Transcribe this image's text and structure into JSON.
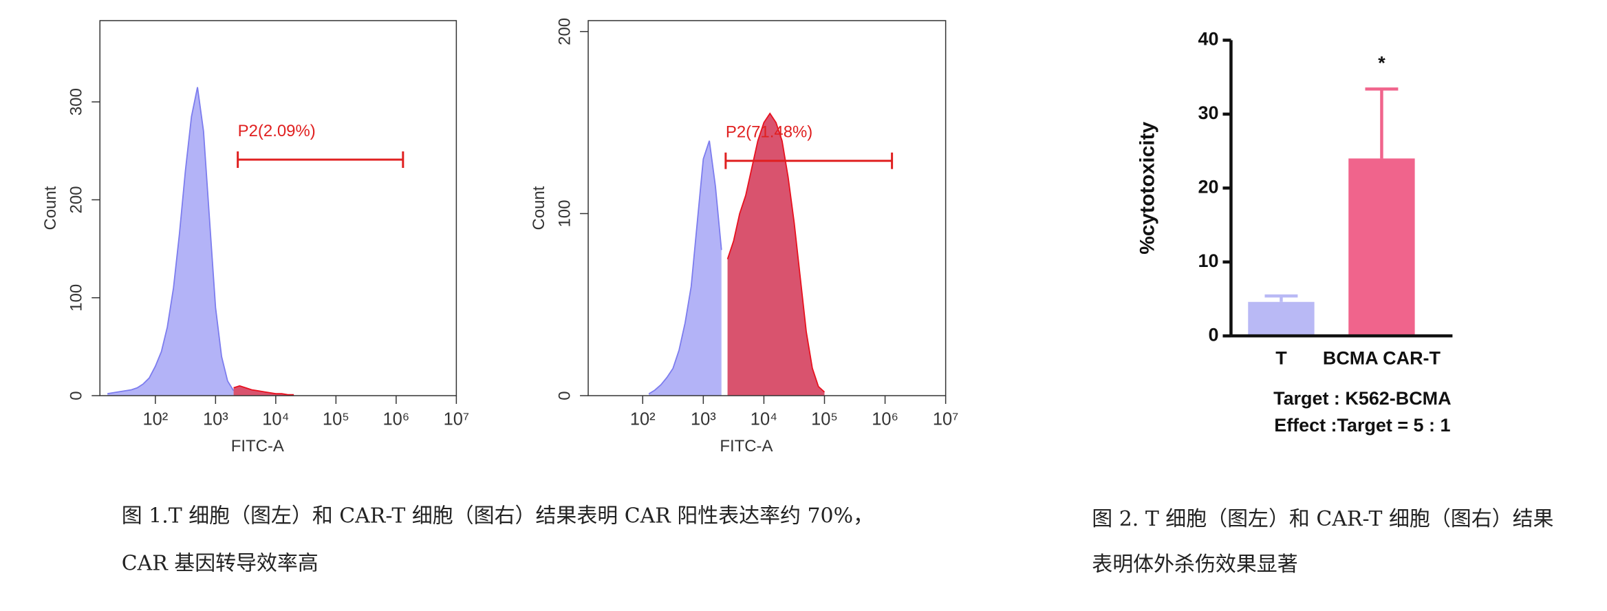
{
  "chart_data": [
    {
      "type": "area",
      "xscale": "log",
      "frame": true,
      "xlabel": "FITC-A",
      "ylabel": "Count",
      "xlim": [
        12,
        10000000
      ],
      "ylim": [
        0,
        383
      ],
      "xticks": [
        {
          "value": 100,
          "label": "10²"
        },
        {
          "value": 1000,
          "label": "10³"
        },
        {
          "value": 10000,
          "label": "10⁴"
        },
        {
          "value": 100000,
          "label": "10⁵"
        },
        {
          "value": 1000000,
          "label": "10⁶"
        },
        {
          "value": 10000000,
          "label": "10⁷"
        }
      ],
      "yticks": [
        0,
        100,
        200,
        300
      ],
      "x": [
        16,
        20,
        25,
        32,
        40,
        50,
        63,
        79,
        100,
        126,
        158,
        200,
        251,
        316,
        398,
        501,
        631,
        794,
        1000,
        1259,
        1585,
        1995,
        2512,
        3162,
        3981,
        5012,
        6310,
        7943,
        10000,
        12589,
        15849,
        19953
      ],
      "series": [
        {
          "color": "#b3b3f7",
          "edge_color": "#7c7cee",
          "values": [
            2,
            3,
            4,
            5,
            6,
            8,
            12,
            18,
            30,
            45,
            70,
            110,
            165,
            230,
            285,
            315,
            270,
            180,
            90,
            40,
            15,
            5,
            null,
            null,
            null,
            null,
            null,
            null,
            null,
            null,
            null,
            null
          ]
        },
        {
          "color": "#d9536e",
          "edge_color": "#e8101e",
          "values": [
            null,
            null,
            null,
            null,
            null,
            null,
            null,
            null,
            null,
            null,
            null,
            null,
            null,
            null,
            null,
            null,
            null,
            null,
            null,
            null,
            null,
            8,
            10,
            8,
            6,
            5,
            4,
            3,
            2,
            2,
            1,
            1
          ]
        }
      ],
      "gate": {
        "text": "P2(2.09%)",
        "x": [
          2340,
          1300000
        ],
        "y": 241,
        "color": "#e02020"
      }
    },
    {
      "type": "area",
      "xscale": "log",
      "frame": true,
      "xlabel": "FITC-A",
      "ylabel": "Count",
      "xlim": [
        12.6,
        10000000
      ],
      "ylim": [
        0,
        206
      ],
      "xticks": [
        {
          "value": 100,
          "label": "10²"
        },
        {
          "value": 1000,
          "label": "10³"
        },
        {
          "value": 10000,
          "label": "10⁴"
        },
        {
          "value": 100000,
          "label": "10⁵"
        },
        {
          "value": 1000000,
          "label": "10⁶"
        },
        {
          "value": 10000000,
          "label": "10⁷"
        }
      ],
      "yticks": [
        0,
        100,
        200
      ],
      "x": [
        126,
        158,
        200,
        251,
        316,
        398,
        501,
        631,
        794,
        1000,
        1259,
        1585,
        1995,
        2512,
        3162,
        3981,
        5012,
        6310,
        7943,
        10000,
        12589,
        15849,
        19953,
        25119,
        31623,
        39811,
        50119,
        63096,
        79433,
        100000
      ],
      "series": [
        {
          "color": "#b3b3f7",
          "edge_color": "#7c7cee",
          "values": [
            1,
            3,
            6,
            10,
            15,
            25,
            40,
            60,
            95,
            130,
            140,
            115,
            80,
            null,
            null,
            null,
            null,
            null,
            null,
            null,
            null,
            null,
            null,
            null,
            null,
            null,
            null,
            null,
            null,
            null
          ]
        },
        {
          "color": "#d9536e",
          "edge_color": "#e8101e",
          "values": [
            null,
            null,
            null,
            null,
            null,
            null,
            null,
            null,
            null,
            null,
            null,
            null,
            null,
            75,
            85,
            100,
            110,
            125,
            140,
            150,
            155,
            150,
            140,
            120,
            95,
            65,
            35,
            15,
            5,
            2
          ]
        }
      ],
      "gate": {
        "text": "P2(71.48%)",
        "x": [
          2340,
          1300000
        ],
        "y": 129,
        "color": "#e02020"
      }
    },
    {
      "type": "bar",
      "ylabel": "%cytotoxicity",
      "xlabel": [
        "Target : K562-BCMA",
        "Effect :Target = 5 : 1"
      ],
      "categories": [
        "T",
        "BCMA CAR-T"
      ],
      "values": [
        4.6,
        24.0
      ],
      "errors": [
        0.8,
        9.4
      ],
      "colors": [
        "#b9b9f5",
        "#f0648c"
      ],
      "significance": [
        null,
        "*"
      ],
      "ylim": [
        0,
        40
      ],
      "yticks": [
        0,
        10,
        20,
        30,
        40
      ]
    }
  ],
  "captions": [
    [
      "图 1.T 细胞（图左）和 CAR-T 细胞（图右）结果表明 CAR 阳性表达率约 70%，",
      "CAR 基因转导效率高"
    ],
    [
      "图 2. T 细胞（图左）和 CAR-T 细胞（图右）结果",
      "表明体外杀伤效果显著"
    ]
  ]
}
